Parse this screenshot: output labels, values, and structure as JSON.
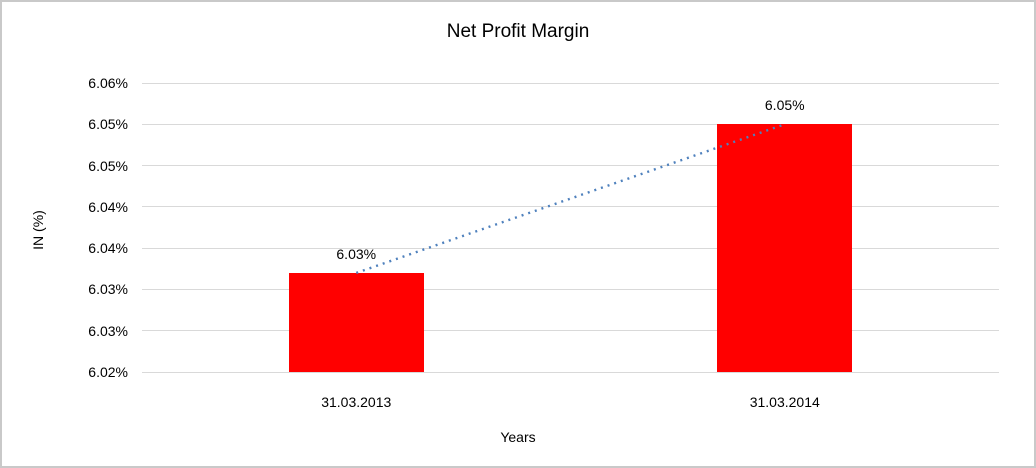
{
  "chart_data": {
    "type": "bar",
    "title": "Net Profit Margin",
    "xlabel": "Years",
    "ylabel": "IN (%)",
    "categories": [
      "31.03.2013",
      "31.03.2014"
    ],
    "values": [
      6.032,
      6.05
    ],
    "data_labels": [
      "6.03%",
      "6.05%"
    ],
    "ylim": [
      6.02,
      6.055
    ],
    "y_ticks": [
      {
        "value": 6.02,
        "label": "6.02%"
      },
      {
        "value": 6.025,
        "label": "6.03%"
      },
      {
        "value": 6.03,
        "label": "6.03%"
      },
      {
        "value": 6.035,
        "label": "6.04%"
      },
      {
        "value": 6.04,
        "label": "6.04%"
      },
      {
        "value": 6.045,
        "label": "6.05%"
      },
      {
        "value": 6.05,
        "label": "6.05%"
      },
      {
        "value": 6.055,
        "label": "6.06%"
      }
    ],
    "grid": true,
    "legend": "none",
    "bar_color": "#ff0000",
    "gridline_color": "#d9d9d9",
    "trendline": {
      "style": "dotted",
      "color": "#4f81bd"
    }
  }
}
